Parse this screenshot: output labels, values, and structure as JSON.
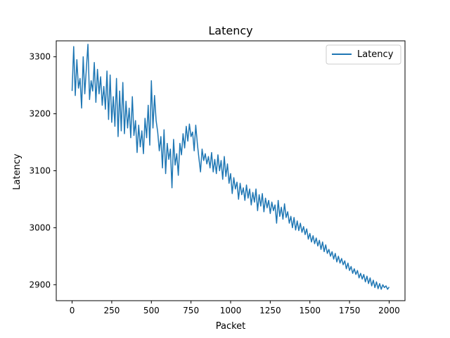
{
  "chart_data": {
    "type": "line",
    "title": "Latency",
    "xlabel": "Packet",
    "ylabel": "Latency",
    "xlim": [
      -100,
      2100
    ],
    "ylim": [
      2872,
      3328
    ],
    "x_ticks": [
      0,
      250,
      500,
      750,
      1000,
      1250,
      1500,
      1750,
      2000
    ],
    "y_ticks": [
      2900,
      3000,
      3100,
      3200,
      3300
    ],
    "grid": false,
    "legend_position": "top-right",
    "colors": {
      "series": "#1f77b4",
      "axes": "#000000",
      "background": "#ffffff"
    },
    "series": [
      {
        "name": "Latency",
        "x": [
          0,
          10,
          20,
          30,
          40,
          50,
          60,
          70,
          80,
          90,
          100,
          110,
          120,
          130,
          140,
          150,
          160,
          170,
          180,
          190,
          200,
          210,
          220,
          230,
          240,
          250,
          260,
          270,
          280,
          290,
          300,
          310,
          320,
          330,
          340,
          350,
          360,
          370,
          380,
          390,
          400,
          410,
          420,
          430,
          440,
          450,
          460,
          470,
          480,
          490,
          500,
          510,
          520,
          530,
          540,
          550,
          560,
          570,
          580,
          590,
          600,
          610,
          620,
          630,
          640,
          650,
          660,
          670,
          680,
          690,
          700,
          710,
          720,
          730,
          740,
          750,
          760,
          770,
          780,
          790,
          800,
          810,
          820,
          830,
          840,
          850,
          860,
          870,
          880,
          890,
          900,
          910,
          920,
          930,
          940,
          950,
          960,
          970,
          980,
          990,
          1000,
          1010,
          1020,
          1030,
          1040,
          1050,
          1060,
          1070,
          1080,
          1090,
          1100,
          1110,
          1120,
          1130,
          1140,
          1150,
          1160,
          1170,
          1180,
          1190,
          1200,
          1210,
          1220,
          1230,
          1240,
          1250,
          1260,
          1270,
          1280,
          1290,
          1300,
          1310,
          1320,
          1330,
          1340,
          1350,
          1360,
          1370,
          1380,
          1390,
          1400,
          1410,
          1420,
          1430,
          1440,
          1450,
          1460,
          1470,
          1480,
          1490,
          1500,
          1510,
          1520,
          1530,
          1540,
          1550,
          1560,
          1570,
          1580,
          1590,
          1600,
          1610,
          1620,
          1630,
          1640,
          1650,
          1660,
          1670,
          1680,
          1690,
          1700,
          1710,
          1720,
          1730,
          1740,
          1750,
          1760,
          1770,
          1780,
          1790,
          1800,
          1810,
          1820,
          1830,
          1840,
          1850,
          1860,
          1870,
          1880,
          1890,
          1900,
          1910,
          1920,
          1930,
          1940,
          1950,
          1960,
          1970,
          1980,
          1990,
          2000
        ],
        "values": [
          3240,
          3318,
          3232,
          3295,
          3245,
          3262,
          3210,
          3300,
          3235,
          3280,
          3322,
          3225,
          3258,
          3240,
          3290,
          3220,
          3278,
          3235,
          3265,
          3215,
          3248,
          3208,
          3275,
          3190,
          3268,
          3185,
          3230,
          3178,
          3262,
          3160,
          3240,
          3170,
          3255,
          3165,
          3222,
          3175,
          3210,
          3158,
          3230,
          3162,
          3188,
          3132,
          3180,
          3142,
          3170,
          3130,
          3192,
          3158,
          3215,
          3145,
          3258,
          3175,
          3232,
          3188,
          3168,
          3135,
          3160,
          3105,
          3172,
          3095,
          3148,
          3120,
          3138,
          3070,
          3155,
          3110,
          3130,
          3092,
          3148,
          3128,
          3165,
          3140,
          3178,
          3152,
          3182,
          3160,
          3168,
          3135,
          3180,
          3148,
          3122,
          3098,
          3138,
          3118,
          3130,
          3112,
          3125,
          3105,
          3132,
          3098,
          3120,
          3095,
          3128,
          3100,
          3118,
          3085,
          3125,
          3090,
          3112,
          3078,
          3095,
          3060,
          3088,
          3068,
          3080,
          3050,
          3078,
          3058,
          3070,
          3048,
          3075,
          3052,
          3068,
          3040,
          3062,
          3045,
          3068,
          3030,
          3058,
          3038,
          3060,
          3028,
          3052,
          3035,
          3048,
          3025,
          3045,
          3030,
          3040,
          3008,
          3048,
          3020,
          3036,
          3015,
          3042,
          3018,
          3028,
          3008,
          3020,
          3000,
          3018,
          2996,
          3012,
          2995,
          3008,
          2992,
          3002,
          2988,
          2998,
          2980,
          2990,
          2975,
          2986,
          2972,
          2982,
          2968,
          2978,
          2962,
          2975,
          2958,
          2970,
          2955,
          2962,
          2950,
          2958,
          2945,
          2955,
          2940,
          2950,
          2938,
          2946,
          2935,
          2942,
          2928,
          2938,
          2925,
          2932,
          2920,
          2928,
          2918,
          2925,
          2912,
          2920,
          2910,
          2918,
          2905,
          2915,
          2902,
          2912,
          2898,
          2908,
          2895,
          2905,
          2893,
          2902,
          2892,
          2900,
          2895,
          2898,
          2892,
          2896
        ]
      }
    ]
  }
}
